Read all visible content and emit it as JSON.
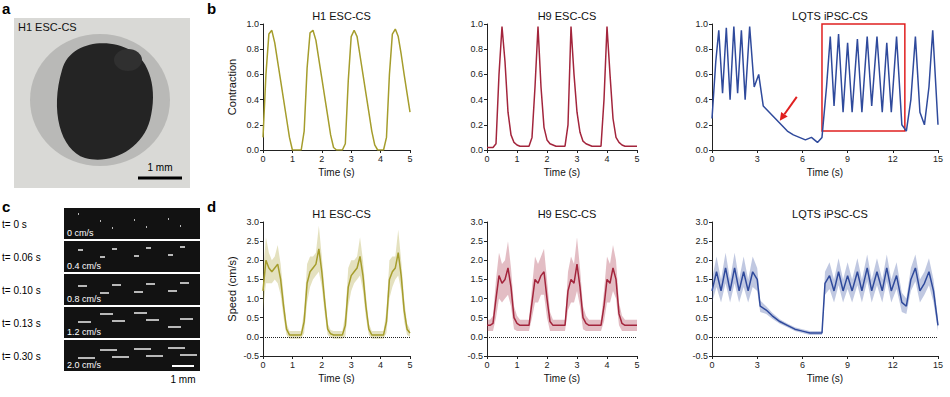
{
  "figure": {
    "panel_labels": [
      "a",
      "b",
      "c",
      "d"
    ]
  },
  "images": [
    {
      "panel": "a",
      "label": "H1 ESC-CS",
      "scale_bar": "1 mm"
    },
    {
      "panel": "c",
      "scale_bar": "1 mm",
      "frames": [
        {
          "time": "t= 0 s",
          "speed": "0 cm/s"
        },
        {
          "time": "t= 0.06 s",
          "speed": "0.4 cm/s"
        },
        {
          "time": "t= 0.10 s",
          "speed": "0.8 cm/s"
        },
        {
          "time": "t= 0.13 s",
          "speed": "1.2 cm/s"
        },
        {
          "time": "t= 0.30 s",
          "speed": "2.0 cm/s"
        }
      ]
    }
  ],
  "chart_data": [
    {
      "type": "line",
      "title": "H1 ESC-CS",
      "x_label": "Time (s)",
      "y_label": "Contraction",
      "color": "#a59d2c",
      "x": [
        0,
        0.1,
        0.2,
        0.3,
        0.4,
        0.5,
        0.6,
        0.7,
        0.8,
        0.9,
        1.0,
        1.1,
        1.2,
        1.3,
        1.4,
        1.5,
        1.6,
        1.7,
        1.8,
        1.9,
        2.0,
        2.1,
        2.2,
        2.3,
        2.4,
        2.5,
        2.6,
        2.7,
        2.8,
        2.9,
        3.0,
        3.1,
        3.2,
        3.3,
        3.4,
        3.5,
        3.6,
        3.7,
        3.8,
        3.9,
        4.0,
        4.1,
        4.2,
        4.3,
        4.4,
        4.5,
        4.6,
        4.7,
        4.8,
        4.9,
        5.0
      ],
      "values": [
        0.1,
        0.6,
        0.92,
        0.95,
        0.85,
        0.7,
        0.55,
        0.4,
        0.25,
        0.1,
        0,
        0,
        0,
        0,
        0.15,
        0.65,
        0.93,
        0.95,
        0.87,
        0.72,
        0.57,
        0.42,
        0.27,
        0.12,
        0.02,
        0,
        0,
        0,
        0.05,
        0.55,
        0.9,
        0.95,
        0.9,
        0.75,
        0.6,
        0.45,
        0.3,
        0.15,
        0.04,
        0,
        0,
        0,
        0.1,
        0.6,
        0.92,
        0.96,
        0.9,
        0.76,
        0.6,
        0.45,
        0.3
      ],
      "xlim": [
        0,
        5
      ],
      "xticks": [
        0,
        1,
        2,
        3,
        4,
        5
      ],
      "ylim": [
        0,
        1
      ],
      "yticks": [
        {
          "value": 0,
          "label": "0.0"
        },
        {
          "value": 0.2,
          "label": "0.2"
        },
        {
          "value": 0.4,
          "label": "0.4"
        },
        {
          "value": 0.6,
          "label": "0.6"
        },
        {
          "value": 0.8,
          "label": "0.8"
        },
        {
          "value": 1,
          "label": "1.0"
        }
      ],
      "grid": false
    },
    {
      "type": "line",
      "title": "H9 ESC-CS",
      "x_label": "Time (s)",
      "color": "#a3253c",
      "x": [
        0,
        0.1,
        0.2,
        0.3,
        0.4,
        0.5,
        0.6,
        0.7,
        0.8,
        0.9,
        1.0,
        1.1,
        1.2,
        1.3,
        1.4,
        1.5,
        1.6,
        1.7,
        1.8,
        1.9,
        2.0,
        2.1,
        2.2,
        2.3,
        2.4,
        2.5,
        2.6,
        2.7,
        2.8,
        2.9,
        3.0,
        3.1,
        3.2,
        3.3,
        3.4,
        3.5,
        3.6,
        3.7,
        3.8,
        3.9,
        4.0,
        4.1,
        4.2,
        4.3,
        4.4,
        4.5,
        4.6,
        4.7,
        4.8,
        4.9,
        5.0
      ],
      "values": [
        0.02,
        0.02,
        0.02,
        0.05,
        0.6,
        0.98,
        0.7,
        0.3,
        0.12,
        0.06,
        0.04,
        0.03,
        0.03,
        0.03,
        0.03,
        0.1,
        0.5,
        0.98,
        0.5,
        0.18,
        0.08,
        0.05,
        0.04,
        0.03,
        0.03,
        0.03,
        0.03,
        0.2,
        0.98,
        0.6,
        0.3,
        0.14,
        0.07,
        0.05,
        0.04,
        0.03,
        0.03,
        0.03,
        0.03,
        0.4,
        0.98,
        0.6,
        0.25,
        0.1,
        0.06,
        0.04,
        0.03,
        0.03,
        0.03,
        0.03,
        0.03
      ],
      "xlim": [
        0,
        5
      ],
      "xticks": [
        0,
        1,
        2,
        3,
        4,
        5
      ],
      "ylim": [
        0,
        1
      ],
      "yticks": [
        {
          "value": 0,
          "label": "0.0"
        },
        {
          "value": 0.2,
          "label": "0.2"
        },
        {
          "value": 0.4,
          "label": "0.4"
        },
        {
          "value": 0.6,
          "label": "0.6"
        },
        {
          "value": 0.8,
          "label": "0.8"
        },
        {
          "value": 1,
          "label": "1.0"
        }
      ],
      "grid": false
    },
    {
      "type": "line",
      "title": "LQTS iPSC-CS",
      "x_label": "Time (s)",
      "color": "#2f4a9c",
      "x": [
        0,
        0.25,
        0.45,
        0.7,
        0.95,
        1.2,
        1.45,
        1.7,
        1.95,
        2.2,
        2.5,
        2.8,
        3.1,
        3.4,
        3.8,
        4.2,
        4.6,
        5.0,
        5.4,
        5.8,
        6.2,
        6.6,
        7.0,
        7.3,
        7.6,
        7.85,
        8.1,
        8.4,
        8.7,
        9.0,
        9.3,
        9.65,
        9.95,
        10.3,
        10.6,
        10.95,
        11.3,
        11.6,
        11.9,
        12.25,
        12.6,
        12.9,
        13.2,
        13.5,
        13.8,
        14.1,
        14.4,
        14.65,
        15.0
      ],
      "values": [
        0.25,
        0.7,
        0.95,
        0.45,
        0.97,
        0.4,
        0.98,
        0.45,
        0.95,
        0.4,
        0.98,
        0.5,
        0.6,
        0.35,
        0.3,
        0.25,
        0.2,
        0.15,
        0.12,
        0.1,
        0.08,
        0.1,
        0.06,
        0.1,
        0.5,
        0.9,
        0.35,
        0.92,
        0.3,
        0.85,
        0.3,
        0.88,
        0.3,
        0.9,
        0.35,
        0.9,
        0.3,
        0.85,
        0.3,
        0.9,
        0.2,
        0.15,
        0.4,
        0.9,
        0.3,
        0.2,
        0.5,
        0.95,
        0.2
      ],
      "xlim": [
        0,
        15
      ],
      "xticks": [
        0,
        3,
        6,
        9,
        12,
        15
      ],
      "ylim": [
        0,
        1
      ],
      "yticks": [
        {
          "value": 0,
          "label": "0.0"
        },
        {
          "value": 0.2,
          "label": "0.2"
        },
        {
          "value": 0.4,
          "label": "0.4"
        },
        {
          "value": 0.6,
          "label": "0.6"
        },
        {
          "value": 0.8,
          "label": "0.8"
        },
        {
          "value": 1,
          "label": "1.0"
        }
      ],
      "annotations": [
        {
          "type": "box",
          "x": [
            7.3,
            12.8
          ],
          "y": [
            0.15,
            1.0
          ],
          "color": "#e02020"
        },
        {
          "type": "arrow",
          "x": 4.3,
          "y": 0.2,
          "color": "#e02020"
        }
      ],
      "grid": false
    },
    {
      "type": "line",
      "title": "H1 ESC-CS",
      "x_label": "Time (s)",
      "y_label": "Speed (cm/s)",
      "color": "#a59d2c",
      "x": [
        0,
        0.1,
        0.2,
        0.3,
        0.4,
        0.5,
        0.6,
        0.7,
        0.8,
        0.9,
        1.0,
        1.1,
        1.2,
        1.3,
        1.4,
        1.5,
        1.6,
        1.7,
        1.8,
        1.9,
        2.0,
        2.1,
        2.2,
        2.3,
        2.4,
        2.5,
        2.6,
        2.7,
        2.8,
        2.9,
        3.0,
        3.1,
        3.2,
        3.3,
        3.4,
        3.5,
        3.6,
        3.7,
        3.8,
        3.9,
        4.0,
        4.1,
        4.2,
        4.3,
        4.4,
        4.5,
        4.6,
        4.7,
        4.8,
        4.9,
        5.0
      ],
      "values": [
        1.2,
        2.0,
        1.8,
        1.7,
        1.8,
        1.9,
        1.5,
        0.8,
        0.2,
        0.05,
        0.05,
        0.05,
        0.05,
        0.05,
        0.4,
        1.4,
        1.7,
        1.8,
        1.9,
        2.3,
        1.7,
        0.9,
        0.2,
        0.08,
        0.05,
        0.05,
        0.05,
        0.05,
        0.3,
        1.3,
        1.6,
        1.7,
        1.8,
        2.1,
        1.6,
        0.8,
        0.2,
        0.05,
        0.05,
        0.05,
        0.05,
        0.05,
        0.4,
        1.5,
        1.7,
        1.8,
        2.2,
        1.6,
        0.7,
        0.2,
        0.1
      ],
      "error": [
        0.5,
        0.6,
        0.4,
        0.3,
        0.3,
        0.5,
        0.4,
        0.3,
        0.15,
        0.1,
        0.1,
        0.1,
        0.1,
        0.1,
        0.3,
        0.5,
        0.4,
        0.3,
        0.3,
        0.6,
        0.4,
        0.3,
        0.15,
        0.1,
        0.1,
        0.1,
        0.1,
        0.1,
        0.3,
        0.5,
        0.4,
        0.3,
        0.3,
        0.5,
        0.4,
        0.3,
        0.15,
        0.1,
        0.1,
        0.1,
        0.1,
        0.1,
        0.3,
        0.5,
        0.4,
        0.3,
        0.6,
        0.4,
        0.3,
        0.15,
        0.1
      ],
      "xlim": [
        0,
        5
      ],
      "xticks": [
        0,
        1,
        2,
        3,
        4,
        5
      ],
      "ylim": [
        -0.5,
        3
      ],
      "yticks": [
        -0.5,
        {
          "value": 0,
          "label": "0.0"
        },
        0.5,
        {
          "value": 1,
          "label": "1.0"
        },
        1.5,
        {
          "value": 2,
          "label": "2.0"
        },
        2.5,
        {
          "value": 3,
          "label": "3.0"
        }
      ],
      "reference_lines": [
        {
          "y": 0,
          "line_style": "dotted"
        }
      ],
      "grid": false
    },
    {
      "type": "line",
      "title": "H9 ESC-CS",
      "x_label": "Time (s)",
      "color": "#a3253c",
      "x": [
        0,
        0.1,
        0.2,
        0.3,
        0.4,
        0.5,
        0.6,
        0.7,
        0.8,
        0.9,
        1.0,
        1.1,
        1.2,
        1.3,
        1.4,
        1.5,
        1.6,
        1.7,
        1.8,
        1.9,
        2.0,
        2.1,
        2.2,
        2.3,
        2.4,
        2.5,
        2.6,
        2.7,
        2.8,
        2.9,
        3.0,
        3.1,
        3.2,
        3.3,
        3.4,
        3.5,
        3.6,
        3.7,
        3.8,
        3.9,
        4.0,
        4.1,
        4.2,
        4.3,
        4.4,
        4.5,
        4.6,
        4.7,
        4.8,
        4.9,
        5.0
      ],
      "values": [
        0.3,
        0.3,
        0.35,
        1.0,
        1.6,
        1.4,
        1.5,
        1.8,
        1.3,
        0.5,
        0.35,
        0.3,
        0.3,
        0.3,
        0.3,
        0.9,
        1.5,
        1.4,
        1.6,
        1.7,
        1.0,
        0.4,
        0.3,
        0.3,
        0.3,
        0.3,
        0.3,
        1.2,
        1.5,
        1.4,
        1.9,
        1.3,
        0.5,
        0.35,
        0.3,
        0.3,
        0.3,
        0.3,
        0.3,
        0.8,
        1.5,
        1.4,
        1.8,
        1.5,
        0.6,
        0.35,
        0.3,
        0.3,
        0.3,
        0.3,
        0.3
      ],
      "error": [
        0.15,
        0.15,
        0.2,
        0.5,
        0.6,
        0.5,
        0.5,
        0.7,
        0.5,
        0.3,
        0.2,
        0.15,
        0.15,
        0.15,
        0.15,
        0.4,
        0.6,
        0.5,
        0.5,
        0.6,
        0.5,
        0.25,
        0.15,
        0.15,
        0.15,
        0.15,
        0.15,
        0.5,
        0.6,
        0.5,
        0.7,
        0.5,
        0.3,
        0.2,
        0.15,
        0.15,
        0.15,
        0.15,
        0.15,
        0.4,
        0.6,
        0.5,
        0.6,
        0.5,
        0.3,
        0.2,
        0.15,
        0.15,
        0.15,
        0.15,
        0.15
      ],
      "xlim": [
        0,
        5
      ],
      "xticks": [
        0,
        1,
        2,
        3,
        4,
        5
      ],
      "ylim": [
        -0.5,
        3
      ],
      "yticks": [
        -0.5,
        {
          "value": 0,
          "label": "0.0"
        },
        0.5,
        {
          "value": 1,
          "label": "1.0"
        },
        1.5,
        {
          "value": 2,
          "label": "2.0"
        },
        2.5,
        {
          "value": 3,
          "label": "3.0"
        }
      ],
      "reference_lines": [
        {
          "y": 0,
          "line_style": "dotted"
        }
      ],
      "grid": false
    },
    {
      "type": "line",
      "title": "LQTS iPSC-CS",
      "x_label": "Time (s)",
      "color": "#2f4a9c",
      "x": [
        0,
        0.3,
        0.6,
        0.9,
        1.2,
        1.5,
        1.8,
        2.1,
        2.4,
        2.7,
        3.0,
        3.2,
        3.6,
        4.0,
        4.5,
        5.0,
        5.5,
        6.0,
        6.5,
        7.0,
        7.3,
        7.5,
        7.8,
        8.1,
        8.4,
        8.7,
        9.0,
        9.3,
        9.65,
        9.95,
        10.3,
        10.6,
        10.95,
        11.3,
        11.6,
        11.9,
        12.25,
        12.6,
        12.9,
        13.2,
        13.5,
        13.8,
        14.1,
        14.4,
        14.7,
        15.0
      ],
      "values": [
        1.2,
        1.7,
        1.2,
        1.8,
        1.2,
        1.8,
        1.2,
        1.7,
        1.2,
        1.7,
        1.5,
        0.8,
        0.7,
        0.55,
        0.4,
        0.3,
        0.2,
        0.15,
        0.1,
        0.1,
        0.1,
        1.4,
        1.6,
        1.2,
        1.7,
        1.2,
        1.6,
        1.2,
        1.7,
        1.2,
        1.8,
        1.2,
        1.7,
        1.2,
        1.8,
        1.2,
        1.6,
        0.9,
        0.8,
        1.5,
        1.8,
        1.2,
        1.4,
        1.7,
        1.2,
        0.3
      ],
      "error": [
        0.3,
        0.4,
        0.3,
        0.4,
        0.3,
        0.4,
        0.3,
        0.4,
        0.3,
        0.4,
        0.3,
        0.15,
        0.1,
        0.08,
        0.06,
        0.05,
        0.05,
        0.05,
        0.05,
        0.05,
        0.05,
        0.3,
        0.35,
        0.3,
        0.35,
        0.3,
        0.35,
        0.3,
        0.35,
        0.3,
        0.35,
        0.3,
        0.35,
        0.3,
        0.35,
        0.3,
        0.35,
        0.25,
        0.2,
        0.3,
        0.35,
        0.3,
        0.3,
        0.35,
        0.3,
        0.15
      ],
      "xlim": [
        0,
        15
      ],
      "xticks": [
        0,
        3,
        6,
        9,
        12,
        15
      ],
      "ylim": [
        -0.5,
        3
      ],
      "yticks": [
        -0.5,
        {
          "value": 0,
          "label": "0.0"
        },
        0.5,
        {
          "value": 1,
          "label": "1.0"
        },
        1.5,
        {
          "value": 2,
          "label": "2.0"
        },
        2.5,
        {
          "value": 3,
          "label": "3.0"
        }
      ],
      "reference_lines": [
        {
          "y": 0,
          "line_style": "dotted"
        }
      ],
      "grid": false
    }
  ]
}
